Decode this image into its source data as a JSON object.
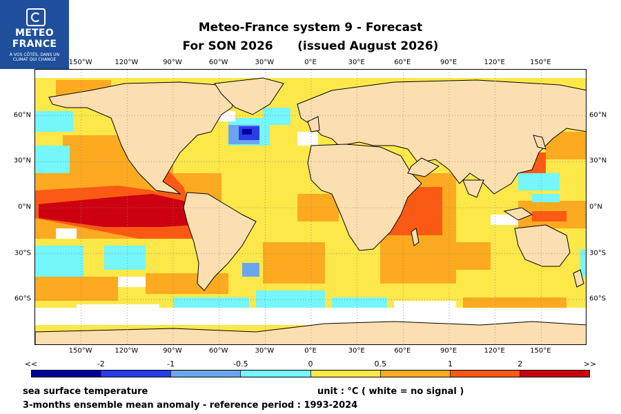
{
  "logo": {
    "line1": "METEO",
    "line2": "FRANCE",
    "tagline1": "À VOS CÔTÉS, DANS UN",
    "tagline2": "CLIMAT QUI CHANGE"
  },
  "title": {
    "line1": "Meteo-France system 9  -  Forecast",
    "line2": "For SON 2026      (issued August 2026)"
  },
  "map": {
    "projection": "equirectangular",
    "lon_range": [
      -180,
      180
    ],
    "lat_range": [
      -90,
      90
    ],
    "lon_ticks": [
      "150°W",
      "120°W",
      "90°W",
      "60°W",
      "30°W",
      "0°E",
      "30°E",
      "60°E",
      "90°E",
      "120°E",
      "150°E"
    ],
    "lat_ticks": [
      "60°N",
      "30°N",
      "0°N",
      "30°S",
      "60°S"
    ],
    "land_color": "#fcdfb0",
    "sea_ice_color": "#ffffff"
  },
  "colorbar": {
    "labels": [
      "<<",
      "-2",
      "-1",
      "-0.5",
      "0",
      "0.5",
      "1",
      "2",
      ">>"
    ],
    "colors": [
      "#00009c",
      "#2a3ce8",
      "#6aa6f0",
      "#74f6fa",
      "#fde84a",
      "#fcaa20",
      "#fa5a14",
      "#cc0010"
    ]
  },
  "footer": {
    "variable": "sea surface temperature",
    "unit": "unit : °C  ( white = no signal )",
    "description": "3-months ensemble mean anomaly - reference period : 1993-2024"
  }
}
